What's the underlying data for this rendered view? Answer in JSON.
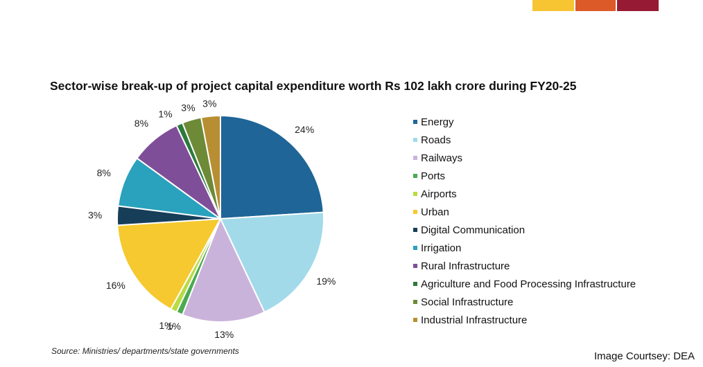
{
  "brand_bars": [
    {
      "color": "#f6c531"
    },
    {
      "color": "#db5a28"
    },
    {
      "color": "#961a33"
    }
  ],
  "chart_data": {
    "type": "pie",
    "title": "Sector-wise break-up of project capital expenditure worth Rs 102 lakh crore during FY20-25",
    "legend_position": "right",
    "slices": [
      {
        "name": "Energy",
        "value": 24,
        "label": "24%",
        "color": "#1f6597"
      },
      {
        "name": "Roads",
        "value": 19,
        "label": "19%",
        "color": "#a2daea"
      },
      {
        "name": "Railways",
        "value": 13,
        "label": "13%",
        "color": "#cab3da"
      },
      {
        "name": "Ports",
        "value": 1,
        "label": "1%",
        "color": "#4aaa50"
      },
      {
        "name": "Airports",
        "value": 1,
        "label": "1%",
        "color": "#b9db43"
      },
      {
        "name": "Urban",
        "value": 16,
        "label": "16%",
        "color": "#f5c92f"
      },
      {
        "name": "Digital Communication",
        "value": 3,
        "label": "3%",
        "color": "#173e58"
      },
      {
        "name": "Irrigation",
        "value": 8,
        "label": "8%",
        "color": "#2aa1bd"
      },
      {
        "name": "Rural Infrastructure",
        "value": 8,
        "label": "8%",
        "color": "#7f4e98"
      },
      {
        "name": "Agriculture and Food Processing Infrastructure",
        "value": 1,
        "label": "1%",
        "color": "#2d7a3c"
      },
      {
        "name": "Social Infrastructure",
        "value": 3,
        "label": "3%",
        "color": "#6d8a36"
      },
      {
        "name": "Industrial Infrastructure",
        "value": 3,
        "label": "3%",
        "color": "#b88e32"
      }
    ]
  },
  "source": "Source: Ministries/ departments/state governments",
  "courtesy": "Image Courtsey: DEA"
}
